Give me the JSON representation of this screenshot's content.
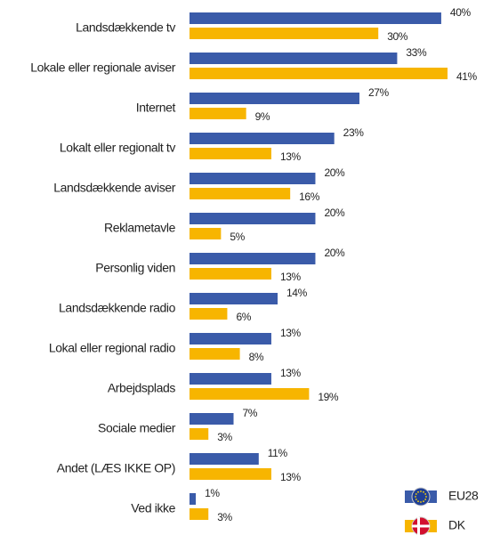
{
  "chart_data": {
    "type": "bar",
    "orientation": "horizontal",
    "categories": [
      "Landsdækkende tv",
      "Lokale eller regionale aviser",
      "Internet",
      "Lokalt eller regionalt tv",
      "Landsdækkende aviser",
      "Reklametavle",
      "Personlig viden",
      "Landsdækkende radio",
      "Lokal eller regional radio",
      "Arbejdsplads",
      "Sociale medier",
      "Andet (LÆS IKKE OP)",
      "Ved ikke"
    ],
    "series": [
      {
        "name": "EU28",
        "color": "#3a5ba9",
        "values": [
          40,
          33,
          27,
          23,
          20,
          20,
          20,
          14,
          13,
          13,
          7,
          11,
          1
        ],
        "value_labels": [
          "40%",
          "33%",
          "27%",
          "23%",
          "20%",
          "20%",
          "20%",
          "14%",
          "13%",
          "13%",
          "7%",
          "11%",
          "1%"
        ]
      },
      {
        "name": "DK",
        "color": "#f7b500",
        "values": [
          30,
          41,
          9,
          13,
          16,
          5,
          13,
          6,
          8,
          19,
          3,
          13,
          3
        ],
        "value_labels": [
          "30%",
          "41%",
          "9%",
          "13%",
          "16%",
          "5%",
          "13%",
          "6%",
          "8%",
          "19%",
          "3%",
          "13%",
          "3%"
        ]
      }
    ],
    "legend": "bottom-right"
  }
}
